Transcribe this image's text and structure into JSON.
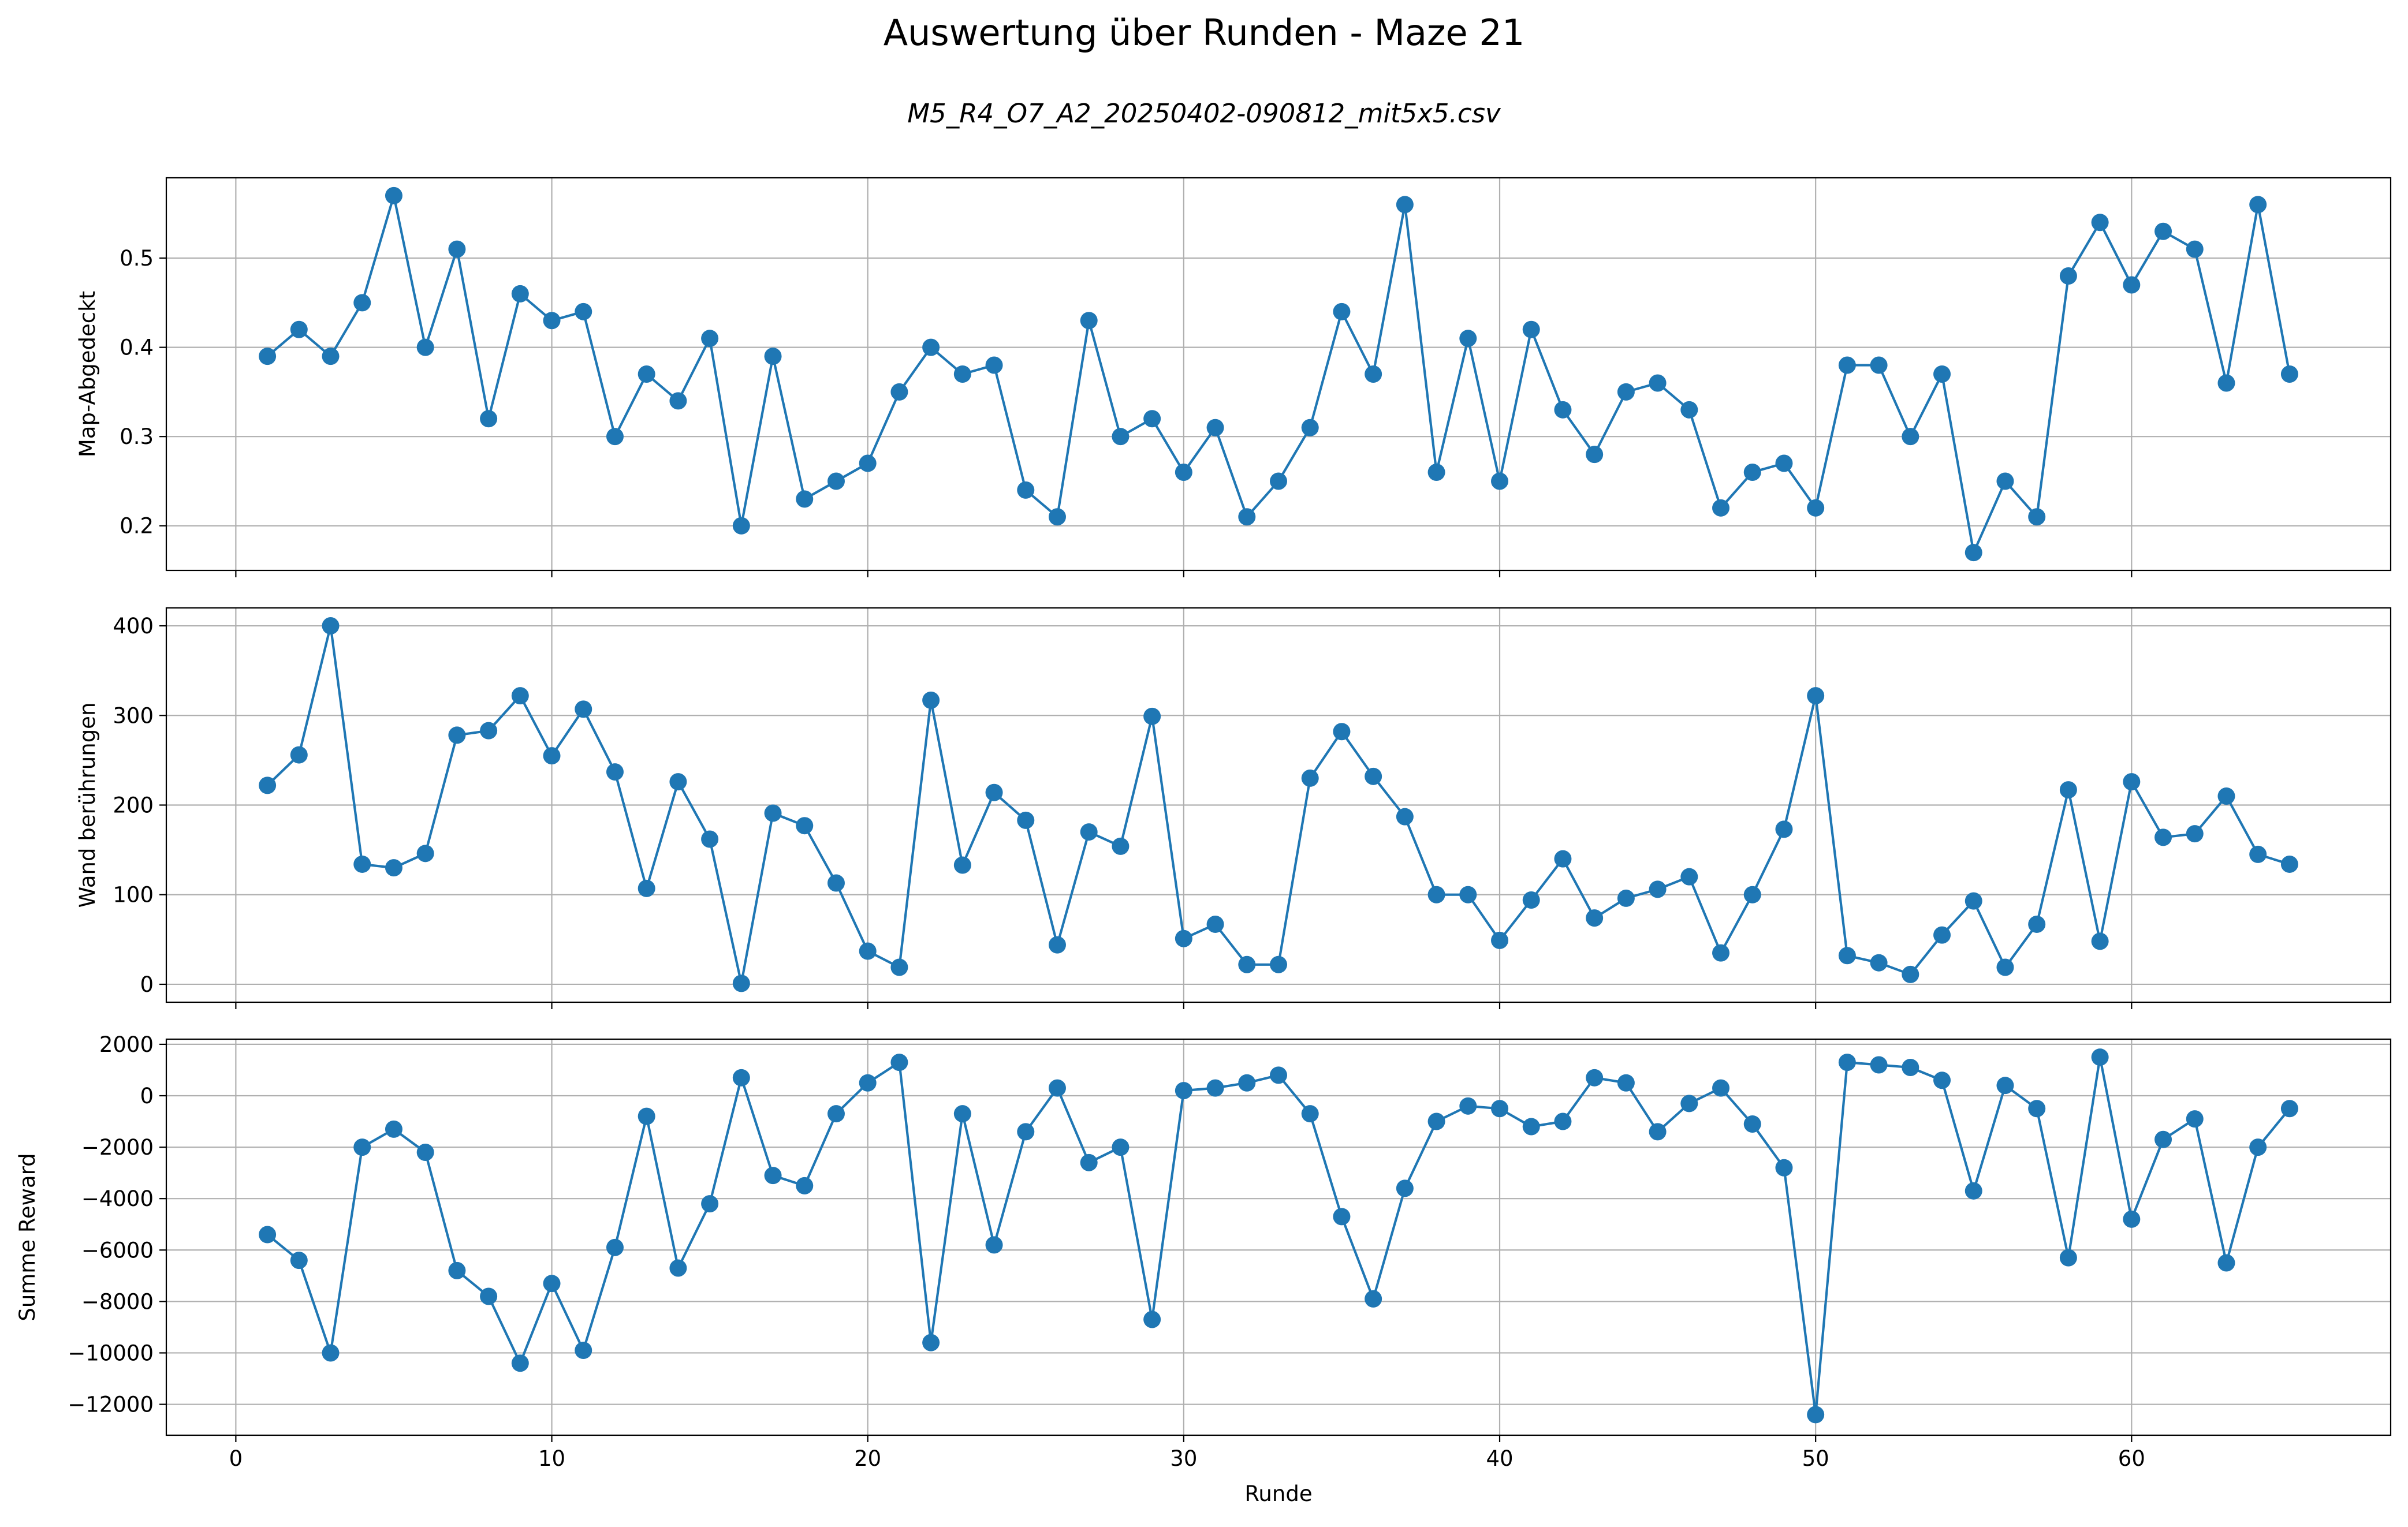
{
  "figure": {
    "title": "Auswertung über Runden - Maze 21",
    "subtitle": "M5_R4_O7_A2_20250402-090812_mit5x5.csv"
  },
  "colors": {
    "series": "#1f77b4",
    "grid": "#b0b0b0",
    "axes": "#000000"
  },
  "chart_data": [
    {
      "type": "line",
      "title": "",
      "xlabel": "",
      "ylabel": "Map-Abgedeckt",
      "xlim": [
        -2.2,
        68.2
      ],
      "ylim": [
        0.15,
        0.59
      ],
      "xticks": [
        0,
        10,
        20,
        30,
        40,
        50,
        60
      ],
      "yticks": [
        0.2,
        0.3,
        0.4,
        0.5
      ],
      "ytick_labels": [
        "0.2",
        "0.3",
        "0.4",
        "0.5"
      ],
      "show_xtick_labels": false,
      "grid": true,
      "marker": "circle",
      "x": [
        1,
        2,
        3,
        4,
        5,
        6,
        7,
        8,
        9,
        10,
        11,
        12,
        13,
        14,
        15,
        16,
        17,
        18,
        19,
        20,
        21,
        22,
        23,
        24,
        25,
        26,
        27,
        28,
        29,
        30,
        31,
        32,
        33,
        34,
        35,
        36,
        37,
        38,
        39,
        40,
        41,
        42,
        43,
        44,
        45,
        46,
        47,
        48,
        49,
        50,
        51,
        52,
        53,
        54,
        55,
        56,
        57,
        58,
        59,
        60,
        61,
        62,
        63,
        64,
        65
      ],
      "y": [
        0.39,
        0.42,
        0.39,
        0.45,
        0.57,
        0.4,
        0.51,
        0.32,
        0.46,
        0.43,
        0.44,
        0.3,
        0.37,
        0.34,
        0.41,
        0.2,
        0.39,
        0.23,
        0.25,
        0.27,
        0.35,
        0.4,
        0.37,
        0.38,
        0.24,
        0.21,
        0.43,
        0.3,
        0.32,
        0.26,
        0.31,
        0.21,
        0.25,
        0.31,
        0.44,
        0.37,
        0.56,
        0.26,
        0.41,
        0.25,
        0.42,
        0.33,
        0.28,
        0.35,
        0.36,
        0.33,
        0.22,
        0.26,
        0.27,
        0.22,
        0.38,
        0.38,
        0.3,
        0.37,
        0.17,
        0.25,
        0.21,
        0.48,
        0.54,
        0.47,
        0.53,
        0.51,
        0.36,
        0.56,
        0.37
      ]
    },
    {
      "type": "line",
      "title": "",
      "xlabel": "",
      "ylabel": "Wand berührungen",
      "xlim": [
        -2.2,
        68.2
      ],
      "ylim": [
        -20,
        420
      ],
      "xticks": [
        0,
        10,
        20,
        30,
        40,
        50,
        60
      ],
      "yticks": [
        0,
        100,
        200,
        300,
        400
      ],
      "ytick_labels": [
        "0",
        "100",
        "200",
        "300",
        "400"
      ],
      "show_xtick_labels": false,
      "grid": true,
      "marker": "circle",
      "x": [
        1,
        2,
        3,
        4,
        5,
        6,
        7,
        8,
        9,
        10,
        11,
        12,
        13,
        14,
        15,
        16,
        17,
        18,
        19,
        20,
        21,
        22,
        23,
        24,
        25,
        26,
        27,
        28,
        29,
        30,
        31,
        32,
        33,
        34,
        35,
        36,
        37,
        38,
        39,
        40,
        41,
        42,
        43,
        44,
        45,
        46,
        47,
        48,
        49,
        50,
        51,
        52,
        53,
        54,
        55,
        56,
        57,
        58,
        59,
        60,
        61,
        62,
        63,
        64,
        65
      ],
      "y": [
        222,
        256,
        400,
        134,
        130,
        146,
        278,
        283,
        322,
        255,
        307,
        237,
        107,
        226,
        162,
        1,
        191,
        177,
        113,
        37,
        19,
        317,
        133,
        214,
        183,
        44,
        170,
        154,
        299,
        51,
        67,
        22,
        22,
        230,
        282,
        232,
        187,
        100,
        100,
        49,
        94,
        140,
        74,
        96,
        106,
        120,
        35,
        100,
        173,
        322,
        32,
        24,
        11,
        55,
        93,
        19,
        67,
        217,
        48,
        226,
        164,
        168,
        210,
        145,
        134
      ]
    },
    {
      "type": "line",
      "title": "",
      "xlabel": "Runde",
      "ylabel": "Summe Reward",
      "xlim": [
        -2.2,
        68.2
      ],
      "ylim": [
        -13200,
        2200
      ],
      "xticks": [
        0,
        10,
        20,
        30,
        40,
        50,
        60
      ],
      "xtick_labels": [
        "0",
        "10",
        "20",
        "30",
        "40",
        "50",
        "60"
      ],
      "yticks": [
        -12000,
        -10000,
        -8000,
        -6000,
        -4000,
        -2000,
        0,
        2000
      ],
      "ytick_labels": [
        "−12000",
        "−10000",
        "−8000",
        "−6000",
        "−4000",
        "−2000",
        "0",
        "2000"
      ],
      "show_xtick_labels": true,
      "grid": true,
      "marker": "circle",
      "x": [
        1,
        2,
        3,
        4,
        5,
        6,
        7,
        8,
        9,
        10,
        11,
        12,
        13,
        14,
        15,
        16,
        17,
        18,
        19,
        20,
        21,
        22,
        23,
        24,
        25,
        26,
        27,
        28,
        29,
        30,
        31,
        32,
        33,
        34,
        35,
        36,
        37,
        38,
        39,
        40,
        41,
        42,
        43,
        44,
        45,
        46,
        47,
        48,
        49,
        50,
        51,
        52,
        53,
        54,
        55,
        56,
        57,
        58,
        59,
        60,
        61,
        62,
        63,
        64,
        65
      ],
      "y": [
        -5400,
        -6400,
        -10000,
        -2000,
        -1300,
        -2200,
        -6800,
        -7800,
        -10400,
        -7300,
        -9900,
        -5900,
        -800,
        -6700,
        -4200,
        700,
        -3100,
        -3500,
        -700,
        500,
        1300,
        -9600,
        -700,
        -5800,
        -1400,
        300,
        -2600,
        -2000,
        -8700,
        200,
        300,
        500,
        800,
        -700,
        -4700,
        -7900,
        -3600,
        -1000,
        -400,
        -500,
        -1200,
        -1000,
        700,
        500,
        -1400,
        -300,
        300,
        -1100,
        -2800,
        -12400,
        1300,
        1200,
        1100,
        600,
        -3700,
        400,
        -500,
        -6300,
        1500,
        -4800,
        -1700,
        -900,
        -6500,
        -2000,
        -500
      ]
    }
  ]
}
